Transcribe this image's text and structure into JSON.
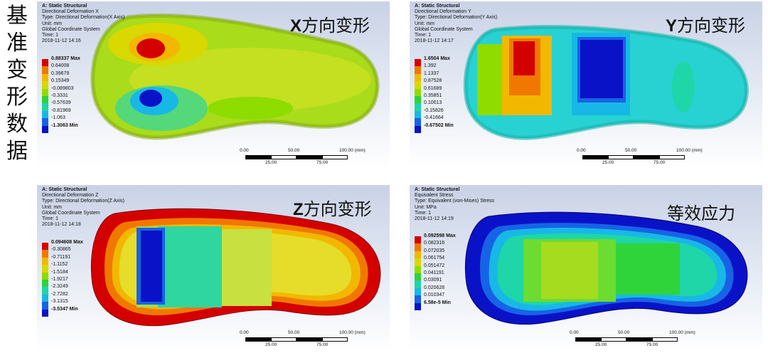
{
  "side_title": [
    "基",
    "准",
    "变",
    "形",
    "数",
    "据"
  ],
  "panels": [
    {
      "big_prefix": "X",
      "big_suffix": "方向变形",
      "header": {
        "title": "A: Static Structural",
        "line2": "Directional Deformation X",
        "line3": "Type: Directional Deformation(X Axis)",
        "line4": "Unit: mm",
        "line5": "Global Coordinate System",
        "line6": "Time: 1",
        "line7": "2018-11-12 14:16"
      },
      "legend": [
        "0.88337 Max",
        "0.64008",
        "0.39679",
        "0.15349",
        "-0.089803",
        "-0.3331",
        "-0.57639",
        "-0.81969",
        "-1.063",
        "-1.3063 Min"
      ]
    },
    {
      "big_prefix": "Y",
      "big_suffix": "方向变形",
      "header": {
        "title": "A: Static Structural",
        "line2": "Directional Deformation Y",
        "line3": "Type: Directional Deformation(Y Axis)",
        "line4": "Unit: mm",
        "line5": "Global Coordinate System",
        "line6": "Time: 1",
        "line7": "2018-11-12 14:17"
      },
      "legend": [
        "1.6504 Max",
        "1.392",
        "1.1337",
        "0.87528",
        "0.61689",
        "0.35851",
        "0.10013",
        "-0.15826",
        "-0.41664",
        "-0.67502 Min"
      ]
    },
    {
      "big_prefix": "Z",
      "big_suffix": "方向变形",
      "header": {
        "title": "A: Static Structural",
        "line2": "Directional Deformation Z",
        "line3": "Type: Directional Deformation(Z Axis)",
        "line4": "Unit: mm",
        "line5": "Global Coordinate System",
        "line6": "Time: 1",
        "line7": "2018-11-12 14:18"
      },
      "legend": [
        "0.094608 Max",
        "-0.30865",
        "-0.71191",
        "-1.1152",
        "-1.5184",
        "-1.9217",
        "-2.3249",
        "-2.7282",
        "-3.1315",
        "-3.5347 Min"
      ]
    },
    {
      "big_prefix": "",
      "big_suffix": "等效应力",
      "header": {
        "title": "A: Static Structural",
        "line2": "Equivalent Stress",
        "line3": "Type: Equivalent (von-Mises) Stress",
        "line4": "Unit: MPa",
        "line5": "Time: 1",
        "line6": "2018-11-12 14:19",
        "line7": ""
      },
      "legend": [
        "0.092598 Max",
        "0.082316",
        "0.072035",
        "0.061754",
        "0.051472",
        "0.041191",
        "0.03091",
        "0.020628",
        "0.010347",
        "6.58e-5 Min"
      ]
    }
  ],
  "scale_bar": {
    "top_ticks": [
      "0.00",
      "50.00",
      "100.00 (mm)"
    ],
    "bottom_ticks": [
      "25.00",
      "75.00"
    ]
  },
  "legend_colors": [
    "#d40000",
    "#f07800",
    "#f2b800",
    "#d6d900",
    "#8edc00",
    "#2fd33a",
    "#1fd6a8",
    "#18b8e6",
    "#1763e6",
    "#0a12c8"
  ]
}
